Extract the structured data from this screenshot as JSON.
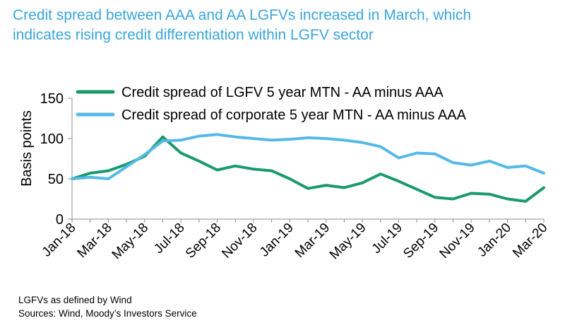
{
  "title": {
    "line1": "Credit spread between AAA and AA LGFVs increased in March, which",
    "line2": "indicates rising credit differentiation within LGFV sector"
  },
  "footer": {
    "note": "LGFVs as defined by Wind",
    "sources": "Sources:  Wind, Moody’s Investors Service"
  },
  "chart_data": {
    "type": "line",
    "ylabel": "Basis points",
    "ylim": [
      0,
      150
    ],
    "yticks": [
      0,
      50,
      100,
      150
    ],
    "grid": false,
    "legend_position": "top",
    "x": [
      "Jan-18",
      "Feb-18",
      "Mar-18",
      "Apr-18",
      "May-18",
      "Jun-18",
      "Jul-18",
      "Aug-18",
      "Sep-18",
      "Oct-18",
      "Nov-18",
      "Dec-18",
      "Jan-19",
      "Feb-19",
      "Mar-19",
      "Apr-19",
      "May-19",
      "Jun-19",
      "Jul-19",
      "Aug-19",
      "Sep-19",
      "Oct-19",
      "Nov-19",
      "Dec-19",
      "Jan-20",
      "Feb-20",
      "Mar-20"
    ],
    "x_tick_labels": [
      "Jan-18",
      "Mar-18",
      "May-18",
      "Jul-18",
      "Sep-18",
      "Nov-18",
      "Jan-19",
      "Mar-19",
      "May-19",
      "Jul-19",
      "Sep-19",
      "Nov-19",
      "Jan-20",
      "Mar-20"
    ],
    "series": [
      {
        "name": "Credit spread of LGFV 5 year MTN -  AA minus AAA",
        "color": "#1a9a6c",
        "values": [
          50,
          57,
          60,
          68,
          78,
          102,
          82,
          72,
          61,
          66,
          62,
          60,
          50,
          38,
          42,
          39,
          45,
          56,
          47,
          37,
          27,
          25,
          32,
          31,
          25,
          22,
          39
        ]
      },
      {
        "name": "Credit spread of corporate 5 year MTN - AA minus AAA",
        "color": "#55b9e6",
        "values": [
          50,
          52,
          50,
          65,
          80,
          97,
          98,
          103,
          105,
          102,
          100,
          98,
          99,
          101,
          100,
          98,
          95,
          90,
          76,
          82,
          81,
          70,
          67,
          72,
          64,
          66,
          57
        ]
      }
    ]
  }
}
